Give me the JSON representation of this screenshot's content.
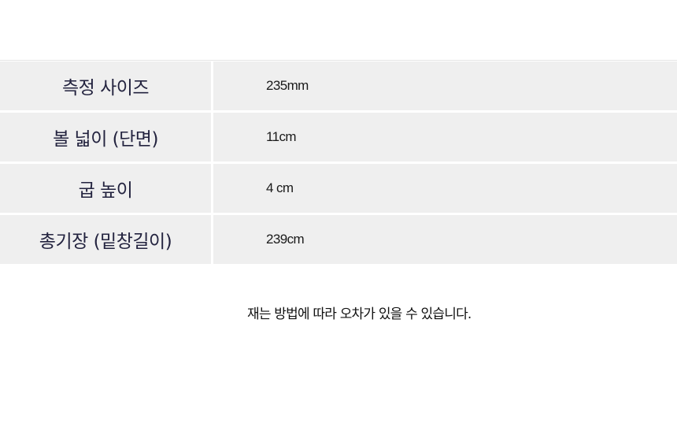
{
  "size_table": {
    "rows": [
      {
        "label": "측정 사이즈",
        "value": "235mm"
      },
      {
        "label": "볼 넓이 (단면)",
        "value": "11cm"
      },
      {
        "label": "굽 높이",
        "value": "4 cm"
      },
      {
        "label": "총기장 (밑창길이)",
        "value": "239cm"
      }
    ]
  },
  "note": "재는 방법에 따라 오차가 있을 수 있습니다."
}
